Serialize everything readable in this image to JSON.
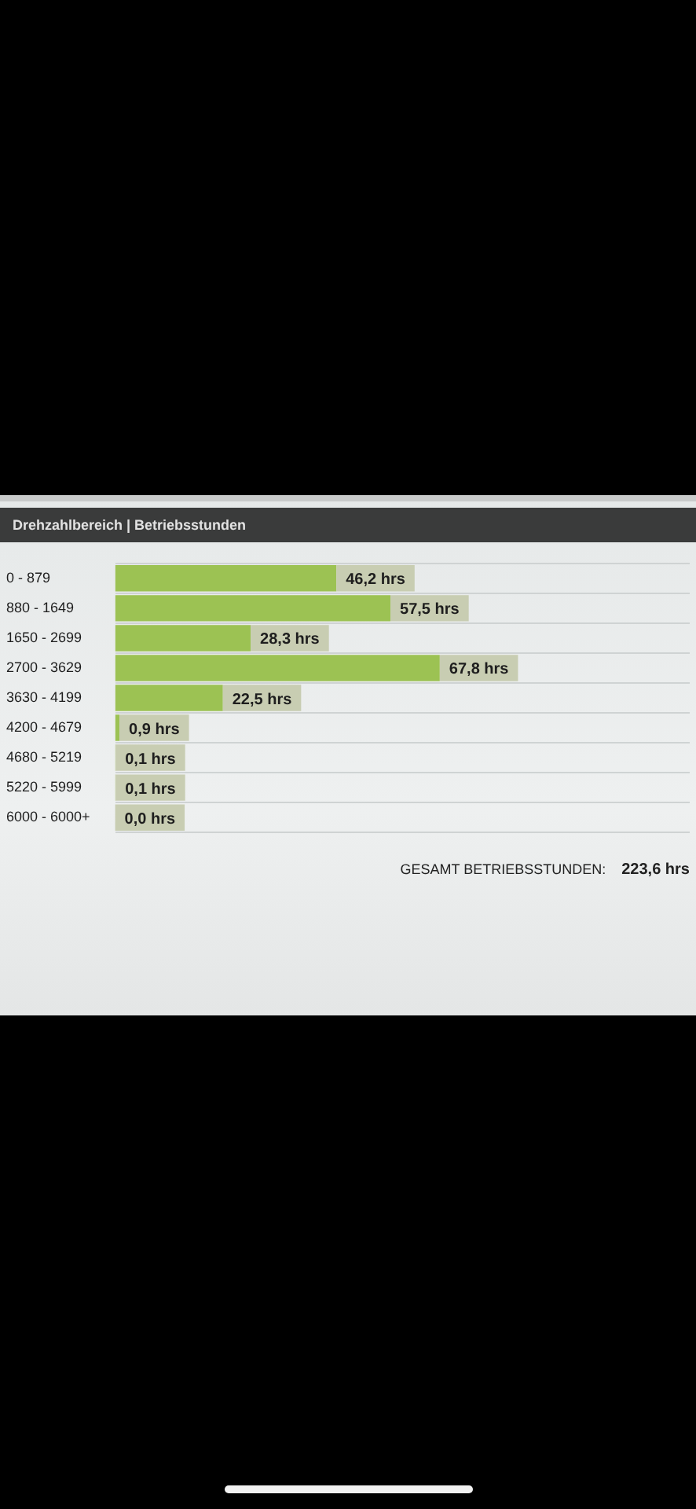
{
  "chart_data": {
    "type": "bar",
    "orientation": "horizontal",
    "title": "Drehzahlbereich | Betriebsstunden",
    "categories": [
      "0 - 879",
      "880 - 1649",
      "1650 - 2699",
      "2700 - 3629",
      "3630 - 4199",
      "4200 - 4679",
      "4680 - 5219",
      "5220 - 5999",
      "6000 - 6000+"
    ],
    "values": [
      46.2,
      57.5,
      28.3,
      67.8,
      22.5,
      0.9,
      0.1,
      0.1,
      0.0
    ],
    "value_labels": [
      "46,2 hrs",
      "57,5 hrs",
      "28,3 hrs",
      "67,8 hrs",
      "22,5 hrs",
      "0,9 hrs",
      "0,1 hrs",
      "0,1 hrs",
      "0,0 hrs"
    ],
    "color": "#9cc253",
    "annotations": [
      "GESAMT BETRIEBSSTUNDEN:",
      "223,6 hrs"
    ],
    "grid": "y",
    "tick_labels": "y"
  }
}
